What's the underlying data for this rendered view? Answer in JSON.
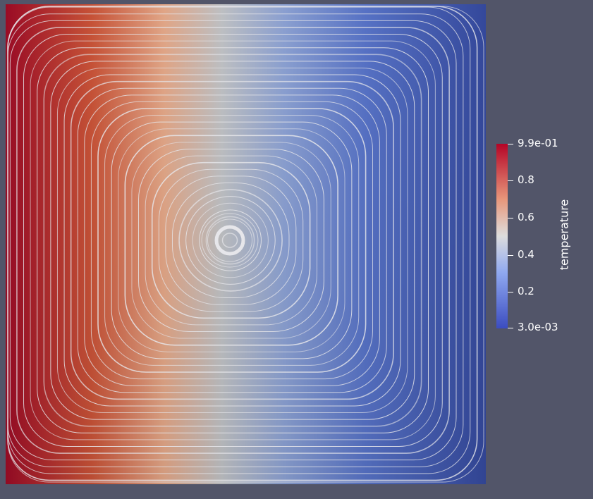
{
  "colormap": {
    "name": "Cool to Warm",
    "low_color": "#3b4cc0",
    "mid_color": "#dddddd",
    "high_color": "#b40426"
  },
  "scalar_field": {
    "name": "temperature",
    "min": 0.003,
    "max": 0.99
  },
  "colorbar": {
    "title": "temperature",
    "max_label": "9.9e-01",
    "min_label": "3.0e-03",
    "ticks": [
      {
        "value": 0.8,
        "label": "0.8"
      },
      {
        "value": 0.6,
        "label": "0.6"
      },
      {
        "value": 0.4,
        "label": "0.4"
      },
      {
        "value": 0.2,
        "label": "0.2"
      }
    ]
  },
  "streamlines": {
    "color": "#e6e6ea"
  },
  "background_color": "#525569"
}
